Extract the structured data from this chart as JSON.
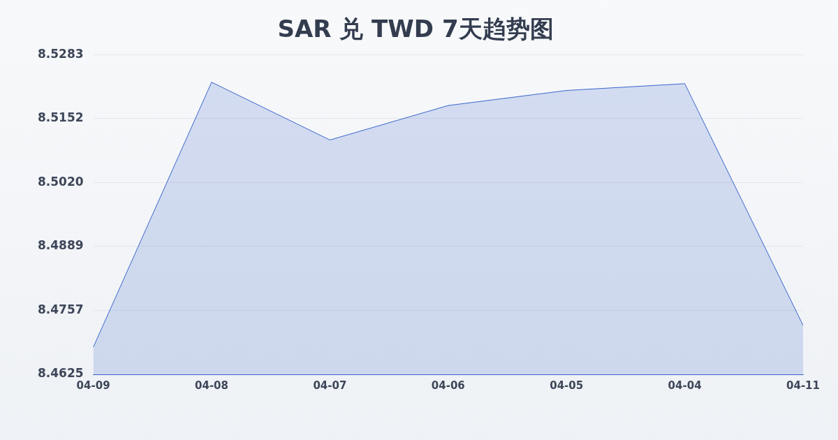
{
  "chart_data": {
    "type": "area",
    "title": "SAR 兑 TWD 7天趋势图",
    "categories": [
      "04-09",
      "04-08",
      "04-07",
      "04-06",
      "04-05",
      "04-04",
      "04-11"
    ],
    "series": [
      {
        "color": "#3a66cc",
        "values": [
          8.4681,
          8.5227,
          8.5108,
          8.5179,
          8.521,
          8.5224,
          8.4726
        ]
      }
    ],
    "ylim": [
      8.4625,
      8.5283
    ],
    "yticks": [
      8.4625,
      8.4757,
      8.4889,
      {
        "value": 8.502,
        "label": "8.5020"
      },
      8.5152,
      8.5283
    ],
    "grid": "y",
    "legend": false,
    "marker": "none"
  }
}
